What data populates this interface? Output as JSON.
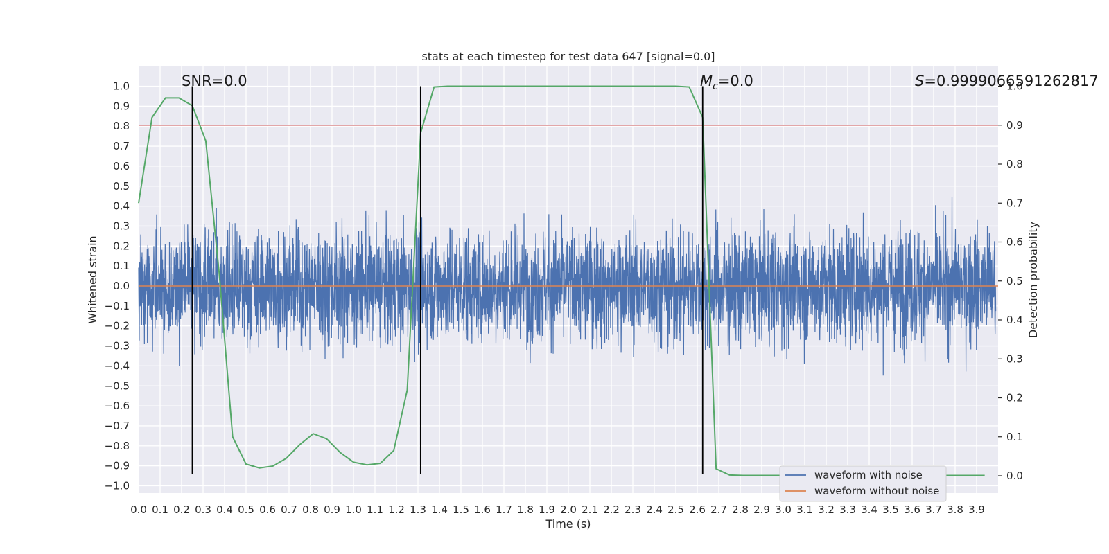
{
  "chart_data": {
    "type": "line",
    "title": "stats at each timestep for test data 647 [signal=0.0]",
    "xlabel": "Time (s)",
    "ylabel": "Whitened strain",
    "y2label": "Detection probability",
    "xlim": [
      0.0,
      4.0
    ],
    "ylim": [
      -1.05,
      1.1
    ],
    "y2lim": [
      -0.05,
      1.0
    ],
    "grid": true,
    "legend_position": "lower-right",
    "x_ticks": [
      "0.0",
      "0.1",
      "0.2",
      "0.3",
      "0.4",
      "0.5",
      "0.6",
      "0.7",
      "0.8",
      "0.9",
      "1.0",
      "1.1",
      "1.2",
      "1.3",
      "1.4",
      "1.5",
      "1.6",
      "1.7",
      "1.8",
      "1.9",
      "2.0",
      "2.1",
      "2.2",
      "2.3",
      "2.4",
      "2.5",
      "2.6",
      "2.7",
      "2.8",
      "2.9",
      "3.0",
      "3.1",
      "3.2",
      "3.3",
      "3.4",
      "3.5",
      "3.6",
      "3.7",
      "3.8",
      "3.9"
    ],
    "y_ticks": [
      "1.0",
      "0.9",
      "0.8",
      "0.7",
      "0.6",
      "0.5",
      "0.4",
      "0.3",
      "0.2",
      "0.1",
      "0.0",
      "−0.1",
      "−0.2",
      "−0.3",
      "−0.4",
      "−0.5",
      "−0.6",
      "−0.7",
      "−0.8",
      "−0.9",
      "−1.0"
    ],
    "y2_ticks": [
      "1.0",
      "0.9",
      "0.8",
      "0.7",
      "0.6",
      "0.5",
      "0.4",
      "0.3",
      "0.2",
      "0.1",
      "0.0"
    ],
    "annotations": {
      "snr": "SNR=0.0",
      "mc_symbol": "M",
      "mc_sub": "c",
      "mc_value": "=0.0",
      "s_symbol": "S",
      "s_value": "=0.9999066591262817"
    },
    "series": [
      {
        "name": "waveform with noise",
        "color": "#4c72b0",
        "description_values": "white noise, amplitude roughly within [-0.93, 1.0]"
      },
      {
        "name": "waveform without noise",
        "color": "#dd8452",
        "values_constant": 0.0
      },
      {
        "color": "#55a868",
        "axis": "y2",
        "x": [
          0.0,
          0.0625,
          0.125,
          0.1875,
          0.25,
          0.3125,
          0.375,
          0.4375,
          0.5,
          0.5625,
          0.625,
          0.6875,
          0.75,
          0.8125,
          0.875,
          0.9375,
          1.0,
          1.0625,
          1.125,
          1.1875,
          1.25,
          1.3125,
          1.375,
          1.4375,
          1.5,
          1.5625,
          1.625,
          1.6875,
          1.75,
          1.8125,
          1.875,
          1.9375,
          2.0,
          2.0625,
          2.125,
          2.1875,
          2.25,
          2.3125,
          2.375,
          2.4375,
          2.5,
          2.5625,
          2.625,
          2.6875,
          2.75,
          2.8125,
          2.875,
          2.9375,
          3.0,
          3.0625,
          3.125,
          3.1875,
          3.25,
          3.3125,
          3.375,
          3.4375,
          3.5,
          3.5625,
          3.625,
          3.6875,
          3.75,
          3.8125,
          3.875,
          3.9375
        ],
        "values": [
          0.7,
          0.92,
          0.97,
          0.97,
          0.95,
          0.86,
          0.52,
          0.1,
          0.03,
          0.02,
          0.025,
          0.045,
          0.08,
          0.108,
          0.095,
          0.06,
          0.035,
          0.028,
          0.032,
          0.065,
          0.22,
          0.88,
          0.998,
          1.0,
          1.0,
          1.0,
          1.0,
          1.0,
          1.0,
          1.0,
          1.0,
          1.0,
          1.0,
          1.0,
          1.0,
          1.0,
          1.0,
          1.0,
          1.0,
          1.0,
          1.0,
          0.998,
          0.92,
          0.018,
          0.002,
          0.001,
          0.001,
          0.001,
          0.001,
          0.001,
          0.001,
          0.001,
          0.001,
          0.001,
          0.001,
          0.001,
          0.001,
          0.001,
          0.001,
          0.001,
          0.001,
          0.001,
          0.001,
          0.001
        ]
      }
    ],
    "threshold": {
      "value": 0.9,
      "axis": "y2",
      "color": "#c44e52"
    },
    "vertical_lines": [
      0.25,
      1.3125,
      2.625
    ],
    "vertical_lines_range": [
      -0.94,
      1.0
    ]
  }
}
